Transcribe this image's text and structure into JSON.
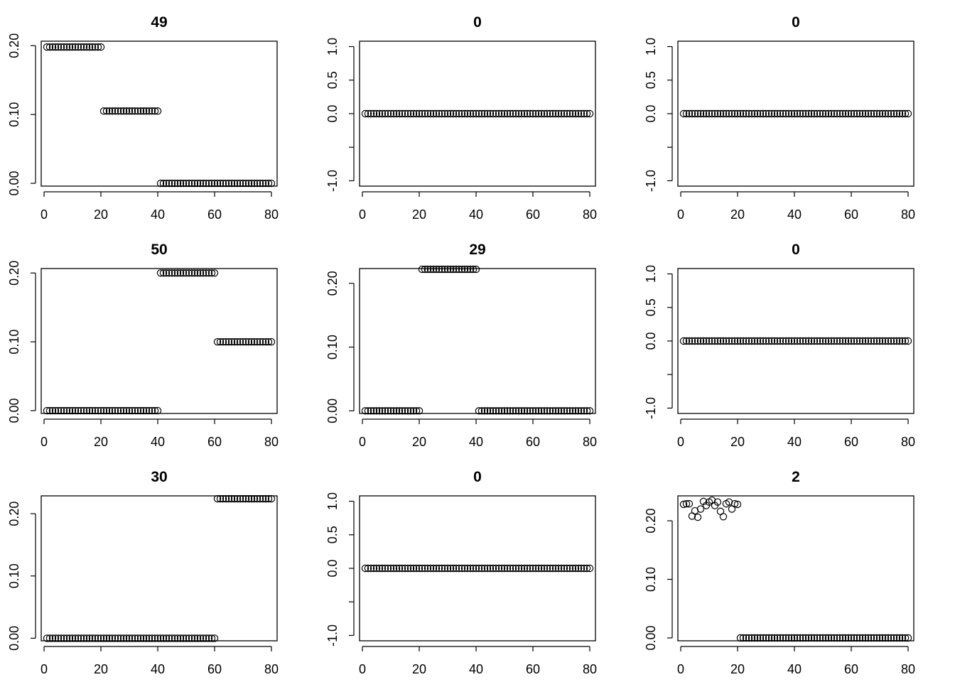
{
  "chart_data": [
    {
      "type": "scatter",
      "title": "49",
      "x_ticks": [
        0,
        20,
        40,
        60,
        80
      ],
      "y_ticks": [
        0.0,
        0.1,
        0.2
      ],
      "y_tick_labels": [
        "0.00",
        "0.10",
        "0.20"
      ],
      "xlim": [
        -1,
        82
      ],
      "ylim": [
        -0.0041,
        0.2065
      ],
      "segments": [
        {
          "from": 1,
          "to": 20,
          "value": 0.198
        },
        {
          "from": 21,
          "to": 40,
          "value": 0.105
        },
        {
          "from": 41,
          "to": 80,
          "value": 0.0
        }
      ]
    },
    {
      "type": "scatter",
      "title": "0",
      "x_ticks": [
        0,
        20,
        40,
        60,
        80
      ],
      "y_ticks": [
        -1.0,
        -0.5,
        0.0,
        0.5,
        1.0
      ],
      "y_tick_labels": [
        "-1.0",
        "",
        "0.0",
        "0.5",
        "1.0"
      ],
      "xlim": [
        -1,
        82
      ],
      "ylim": [
        -1.08,
        1.08
      ],
      "segments": [
        {
          "from": 1,
          "to": 80,
          "value": 0.0
        }
      ]
    },
    {
      "type": "scatter",
      "title": "0",
      "x_ticks": [
        0,
        20,
        40,
        60,
        80
      ],
      "y_ticks": [
        -1.0,
        -0.5,
        0.0,
        0.5,
        1.0
      ],
      "y_tick_labels": [
        "-1.0",
        "",
        "0.0",
        "0.5",
        "1.0"
      ],
      "xlim": [
        -1,
        82
      ],
      "ylim": [
        -1.08,
        1.08
      ],
      "segments": [
        {
          "from": 1,
          "to": 80,
          "value": 0.0
        }
      ]
    },
    {
      "type": "scatter",
      "title": "50",
      "x_ticks": [
        0,
        20,
        40,
        60,
        80
      ],
      "y_ticks": [
        0.0,
        0.1,
        0.2
      ],
      "y_tick_labels": [
        "0.00",
        "0.10",
        "0.20"
      ],
      "xlim": [
        -1,
        82
      ],
      "ylim": [
        -0.0041,
        0.2065
      ],
      "segments": [
        {
          "from": 1,
          "to": 40,
          "value": 0.0
        },
        {
          "from": 41,
          "to": 60,
          "value": 0.2
        },
        {
          "from": 61,
          "to": 80,
          "value": 0.1
        }
      ]
    },
    {
      "type": "scatter",
      "title": "29",
      "x_ticks": [
        0,
        20,
        40,
        60,
        80
      ],
      "y_ticks": [
        0.0,
        0.1,
        0.2
      ],
      "y_tick_labels": [
        "0.00",
        "0.10",
        "0.20"
      ],
      "xlim": [
        -1,
        82
      ],
      "ylim": [
        -0.0041,
        0.2232
      ],
      "segments": [
        {
          "from": 1,
          "to": 20,
          "value": 0.0
        },
        {
          "from": 21,
          "to": 40,
          "value": 0.222
        },
        {
          "from": 41,
          "to": 80,
          "value": 0.0
        }
      ]
    },
    {
      "type": "scatter",
      "title": "0",
      "x_ticks": [
        0,
        20,
        40,
        60,
        80
      ],
      "y_ticks": [
        -1.0,
        -0.5,
        0.0,
        0.5,
        1.0
      ],
      "y_tick_labels": [
        "-1.0",
        "",
        "0.0",
        "0.5",
        "1.0"
      ],
      "xlim": [
        -1,
        82
      ],
      "ylim": [
        -1.08,
        1.08
      ],
      "segments": [
        {
          "from": 1,
          "to": 80,
          "value": 0.0
        }
      ]
    },
    {
      "type": "scatter",
      "title": "30",
      "x_ticks": [
        0,
        20,
        40,
        60,
        80
      ],
      "y_ticks": [
        0.0,
        0.1,
        0.2
      ],
      "y_tick_labels": [
        "0.00",
        "0.10",
        "0.20"
      ],
      "xlim": [
        -1,
        82
      ],
      "ylim": [
        -0.0041,
        0.2286
      ],
      "segments": [
        {
          "from": 1,
          "to": 60,
          "value": 0.0
        },
        {
          "from": 61,
          "to": 80,
          "value": 0.224
        }
      ]
    },
    {
      "type": "scatter",
      "title": "0",
      "x_ticks": [
        0,
        20,
        40,
        60,
        80
      ],
      "y_ticks": [
        -1.0,
        -0.5,
        0.0,
        0.5,
        1.0
      ],
      "y_tick_labels": [
        "-1.0",
        "",
        "0.0",
        "0.5",
        "1.0"
      ],
      "xlim": [
        -1,
        82
      ],
      "ylim": [
        -1.08,
        1.08
      ],
      "segments": [
        {
          "from": 1,
          "to": 80,
          "value": 0.0
        }
      ]
    },
    {
      "type": "scatter",
      "title": "2",
      "x_ticks": [
        0,
        20,
        40,
        60,
        80
      ],
      "y_ticks": [
        0.0,
        0.1,
        0.2
      ],
      "y_tick_labels": [
        "0.00",
        "0.10",
        "0.20"
      ],
      "xlim": [
        -1,
        82
      ],
      "ylim": [
        -0.0049,
        0.2425
      ],
      "points": [
        {
          "x": 1,
          "y": 0.228
        },
        {
          "x": 2,
          "y": 0.229
        },
        {
          "x": 3,
          "y": 0.229
        },
        {
          "x": 4,
          "y": 0.208
        },
        {
          "x": 5,
          "y": 0.217
        },
        {
          "x": 6,
          "y": 0.206
        },
        {
          "x": 7,
          "y": 0.22
        },
        {
          "x": 8,
          "y": 0.233
        },
        {
          "x": 9,
          "y": 0.226
        },
        {
          "x": 10,
          "y": 0.232
        },
        {
          "x": 11,
          "y": 0.235
        },
        {
          "x": 12,
          "y": 0.226
        },
        {
          "x": 13,
          "y": 0.232
        },
        {
          "x": 14,
          "y": 0.216
        },
        {
          "x": 15,
          "y": 0.207
        },
        {
          "x": 16,
          "y": 0.229
        },
        {
          "x": 17,
          "y": 0.232
        },
        {
          "x": 18,
          "y": 0.22
        },
        {
          "x": 19,
          "y": 0.229
        },
        {
          "x": 20,
          "y": 0.228
        }
      ],
      "segments": [
        {
          "from": 21,
          "to": 80,
          "value": 0.0
        }
      ]
    }
  ]
}
